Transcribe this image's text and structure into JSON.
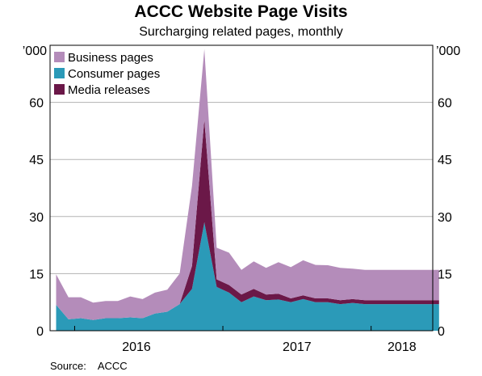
{
  "title": "ACCC Website Page Visits",
  "subtitle": "Surcharging related pages, monthly",
  "source_label": "Source:",
  "source_value": "ACCC",
  "colors": {
    "business": "#b48cba",
    "consumer": "#2b9ab8",
    "media": "#6b1848",
    "grid": "#b3b3b3"
  },
  "chart_data": {
    "type": "area",
    "stacked": true,
    "unit_label": "’000",
    "ylim": [
      0,
      75
    ],
    "yticks": [
      0,
      15,
      30,
      45,
      60
    ],
    "xlabels": [
      "2016",
      "2017",
      "2018"
    ],
    "x": [
      "2015-11",
      "2015-12",
      "2016-01",
      "2016-02",
      "2016-03",
      "2016-04",
      "2016-05",
      "2016-06",
      "2016-07",
      "2016-08",
      "2016-09",
      "2016-10",
      "2016-11",
      "2016-12",
      "2017-01",
      "2017-02",
      "2017-03",
      "2017-04",
      "2017-05",
      "2017-06",
      "2017-07",
      "2017-08",
      "2017-09",
      "2017-10",
      "2017-11",
      "2017-12",
      "2018-01",
      "2018-02",
      "2018-03",
      "2018-04",
      "2018-05",
      "2018-06"
    ],
    "series": [
      {
        "name": "Consumer pages",
        "values": [
          6.8,
          3.0,
          3.3,
          2.8,
          3.3,
          3.3,
          3.5,
          3.3,
          4.5,
          5.0,
          7.0,
          11.0,
          28.5,
          11.5,
          10.0,
          7.5,
          9.0,
          8.0,
          8.2,
          7.5,
          8.3,
          7.5,
          7.5,
          7.0,
          7.3,
          7.0,
          7.0,
          7.0,
          7.0,
          7.0,
          7.0,
          7.0
        ]
      },
      {
        "name": "Media releases",
        "values": [
          0,
          0,
          0,
          0,
          0,
          0,
          0,
          0,
          0,
          0,
          0,
          6.0,
          27.0,
          2.0,
          2.0,
          2.0,
          2.0,
          1.5,
          1.5,
          1.0,
          1.0,
          1.0,
          1.0,
          1.0,
          1.0,
          1.0,
          1.0,
          1.0,
          1.0,
          1.0,
          1.0,
          1.0
        ]
      },
      {
        "name": "Business pages",
        "values": [
          8.0,
          5.8,
          5.5,
          4.6,
          4.5,
          4.5,
          5.5,
          5.0,
          5.5,
          5.8,
          8.0,
          21.0,
          18.5,
          8.3,
          8.5,
          6.5,
          7.2,
          7.0,
          8.3,
          8.2,
          9.2,
          8.8,
          8.7,
          8.5,
          8.0,
          8.0,
          8.0,
          8.0,
          8.0,
          8.0,
          8.0,
          8.0
        ]
      }
    ]
  }
}
